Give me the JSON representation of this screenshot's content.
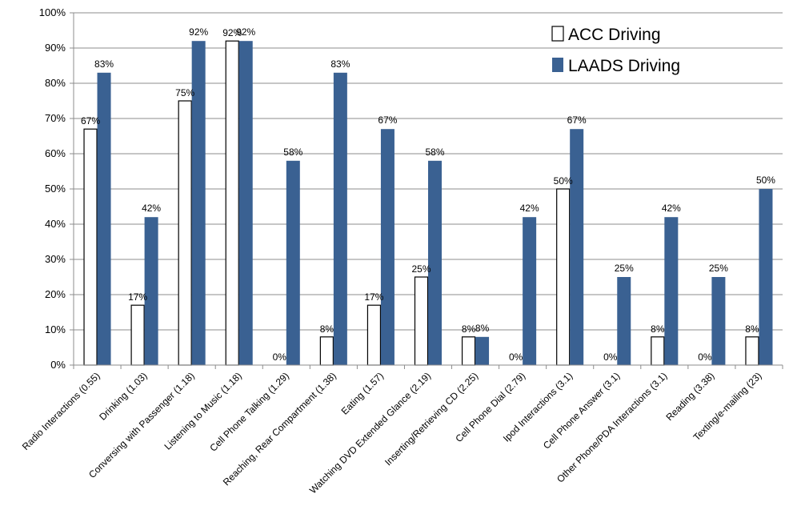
{
  "chart_data": {
    "type": "bar",
    "title": "",
    "xlabel": "",
    "ylabel": "",
    "ylim": [
      0,
      100
    ],
    "y_ticks": [
      "0%",
      "10%",
      "20%",
      "30%",
      "40%",
      "50%",
      "60%",
      "70%",
      "80%",
      "90%",
      "100%"
    ],
    "grid": true,
    "legend_position": "top-right",
    "categories": [
      "Radio Interactions (0.55)",
      "Drinking (1.03)",
      "Conversing with Passenger (1.18)",
      "Listening to Music (1.18)",
      "Cell Phone Talking (1.29)",
      "Reaching, Rear Compartment (1.38)",
      "Eating (1.57)",
      "Watching DVD Extended Glance (2.19)",
      "Inserting/Retrieving CD (2.25)",
      "Cell Phone Dial (2.79)",
      "Ipod Interactions (3.1)",
      "Cell Phone Answer (3.1)",
      "Other Phone/PDA Interactions (3.1)",
      "Reading (3.38)",
      "Texting/e-mailing (23)"
    ],
    "series": [
      {
        "name": "ACC Driving",
        "color": "#ffffff",
        "values": [
          67,
          17,
          75,
          92,
          0,
          8,
          17,
          25,
          8,
          0,
          50,
          0,
          8,
          0,
          8
        ],
        "labels": [
          "67%",
          "17%",
          "75%",
          "92%",
          "0%",
          "8%",
          "17%",
          "25%",
          "8%",
          "0%",
          "50%",
          "0%",
          "8%",
          "0%",
          "8%"
        ]
      },
      {
        "name": "LAADS Driving",
        "color": "#3a6192",
        "values": [
          83,
          42,
          92,
          92,
          58,
          83,
          67,
          58,
          8,
          42,
          67,
          25,
          42,
          25,
          50
        ],
        "labels": [
          "83%",
          "42%",
          "92%",
          "92%",
          "58%",
          "83%",
          "67%",
          "58%",
          "8%",
          "42%",
          "67%",
          "25%",
          "42%",
          "25%",
          "50%"
        ]
      }
    ]
  }
}
